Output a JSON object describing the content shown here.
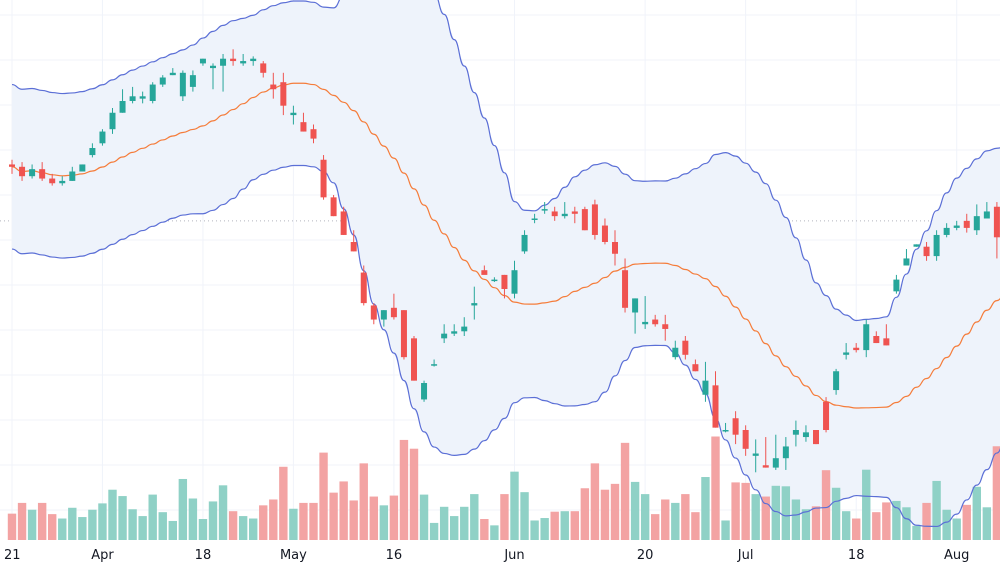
{
  "chart_data": {
    "type": "candlestick",
    "overlays": [
      "bollinger_upper",
      "bollinger_basis",
      "bollinger_lower"
    ],
    "x_tick_labels": [
      {
        "label": "21",
        "index": 0
      },
      {
        "label": "Apr",
        "index": 9
      },
      {
        "label": "18",
        "index": 19
      },
      {
        "label": "May",
        "index": 28
      },
      {
        "label": "16",
        "index": 38
      },
      {
        "label": "Jun",
        "index": 50
      },
      {
        "label": "20",
        "index": 63
      },
      {
        "label": "Jul",
        "index": 73
      },
      {
        "label": "18",
        "index": 84
      },
      {
        "label": "Aug",
        "index": 94
      }
    ],
    "candles": [
      [
        13,
        12,
        15,
        9
      ],
      [
        12,
        8,
        14,
        6
      ],
      [
        8,
        11,
        13,
        7
      ],
      [
        11,
        7,
        14,
        6
      ],
      [
        7,
        5,
        9,
        4
      ],
      [
        5,
        6,
        8,
        4
      ],
      [
        6,
        10,
        12,
        6
      ],
      [
        10,
        13,
        13,
        10
      ],
      [
        17,
        20,
        22,
        16
      ],
      [
        22,
        27,
        28,
        21
      ],
      [
        28,
        35,
        37,
        26
      ],
      [
        35,
        40,
        45,
        35
      ],
      [
        40,
        42,
        46,
        39
      ],
      [
        41,
        42,
        44,
        39
      ],
      [
        40,
        47,
        48,
        39
      ],
      [
        47,
        50,
        51,
        46
      ],
      [
        51,
        52,
        54,
        51
      ],
      [
        42,
        52,
        53,
        40
      ],
      [
        46,
        51,
        53,
        44
      ],
      [
        56,
        58,
        58,
        55
      ],
      [
        54,
        55,
        56,
        45
      ],
      [
        55,
        58,
        60,
        44
      ],
      [
        58,
        57,
        62,
        55
      ],
      [
        56,
        57,
        60,
        55
      ],
      [
        57,
        58,
        59,
        55
      ],
      [
        56,
        52,
        57,
        50
      ],
      [
        47,
        45,
        52,
        41
      ],
      [
        48,
        38,
        52,
        34
      ],
      [
        34,
        35,
        38,
        30
      ],
      [
        31,
        27,
        35,
        27
      ],
      [
        28,
        24,
        30,
        22
      ],
      [
        15,
        -1,
        17,
        -2
      ],
      [
        -1,
        -9,
        0,
        -9
      ],
      [
        -7,
        -17,
        -5,
        -17
      ],
      [
        -20,
        -24,
        -15,
        -24
      ],
      [
        -33,
        -46,
        -30,
        -47
      ],
      [
        -47,
        -53,
        -46,
        -55
      ],
      [
        -53,
        -49,
        -49,
        -56
      ],
      [
        -48,
        -52,
        -42,
        -53
      ],
      [
        -49,
        -69,
        -49,
        -70
      ],
      [
        -61,
        -79,
        -60,
        -79
      ],
      [
        -87,
        -80,
        -79,
        -88
      ],
      [
        -72,
        -72,
        -70,
        -73
      ],
      [
        -61,
        -59,
        -55,
        -63
      ],
      [
        -59,
        -58,
        -55,
        -60
      ],
      [
        -58,
        -56,
        -52,
        -60
      ],
      [
        -47,
        -46,
        -39,
        -53
      ],
      [
        -32,
        -34,
        -30,
        -33
      ],
      [
        -36,
        -36,
        -35,
        -37
      ],
      [
        -34,
        -40,
        -34,
        -44
      ],
      [
        -42,
        -32,
        -28,
        -44
      ],
      [
        -24,
        -17,
        -15,
        -25
      ],
      [
        -10,
        -10,
        -8,
        -12
      ],
      [
        -6,
        -6,
        -3,
        -8
      ],
      [
        -7,
        -9,
        -5,
        -11
      ],
      [
        -9,
        -8,
        -3,
        -10
      ],
      [
        -7,
        -8,
        -5,
        -12
      ],
      [
        -6,
        -15,
        -5,
        -15
      ],
      [
        -4,
        -17,
        -2,
        -19
      ],
      [
        -13,
        -20,
        -10,
        -21
      ],
      [
        -20,
        -25,
        -15,
        -30
      ],
      [
        -32,
        -48,
        -27,
        -50
      ],
      [
        -50,
        -44,
        -44,
        -59
      ],
      [
        -55,
        -54,
        -43,
        -57
      ],
      [
        -53,
        -55,
        -51,
        -56
      ],
      [
        -55,
        -57,
        -51,
        -62
      ],
      [
        -69,
        -65,
        -62,
        -70
      ],
      [
        -62,
        -68,
        -60,
        -70
      ],
      [
        -72,
        -75,
        -70,
        -75
      ],
      [
        -85,
        -79,
        -71,
        -88
      ],
      [
        -81,
        -99,
        -75,
        -99
      ],
      [
        -100,
        -100,
        -97,
        -101
      ],
      [
        -95,
        -102,
        -92,
        -106
      ],
      [
        -100,
        -108,
        -98,
        -111
      ],
      [
        -111,
        -110,
        -104,
        -118
      ],
      [
        -115,
        -116,
        -103,
        -116
      ],
      [
        -116,
        -112,
        -102,
        -117
      ],
      [
        -112,
        -107,
        -103,
        -117
      ],
      [
        -102,
        -100,
        -96,
        -107
      ],
      [
        -103,
        -101,
        -98,
        -105
      ],
      [
        -100,
        -106,
        -101,
        -106
      ],
      [
        -88,
        -100,
        -86,
        -101
      ],
      [
        -83,
        -75,
        -74,
        -85
      ],
      [
        -68,
        -67,
        -63,
        -70
      ],
      [
        -65,
        -66,
        -63,
        -67
      ],
      [
        -66,
        -55,
        -53,
        -69
      ],
      [
        -60,
        -63,
        -58,
        -63
      ],
      [
        -61,
        -64,
        -55,
        -64
      ],
      [
        -41,
        -36,
        -34,
        -42
      ],
      [
        -30,
        -27,
        -23,
        -30
      ],
      [
        -22,
        -21,
        -21,
        -22
      ],
      [
        -22,
        -26,
        -20,
        -28
      ],
      [
        -26,
        -17,
        -15,
        -28
      ],
      [
        -17,
        -14,
        -12,
        -18
      ],
      [
        -14,
        -13,
        -11,
        -15
      ],
      [
        -11,
        -14,
        -8,
        -16
      ],
      [
        -15,
        -9,
        -4,
        -17
      ],
      [
        -10,
        -7,
        -3,
        -10
      ],
      [
        -5,
        -18,
        -3,
        -27
      ],
      [
        -18,
        -11,
        -8,
        -19
      ]
    ],
    "volume_colors": {
      "up": "#8fd1c6",
      "down": "#f3a3a3"
    },
    "colors": {
      "up": "#26a69a",
      "down": "#ef5350",
      "bands": "#5b6fd6",
      "basis": "#f57c3a",
      "band_fill": "#eef3fb"
    }
  }
}
